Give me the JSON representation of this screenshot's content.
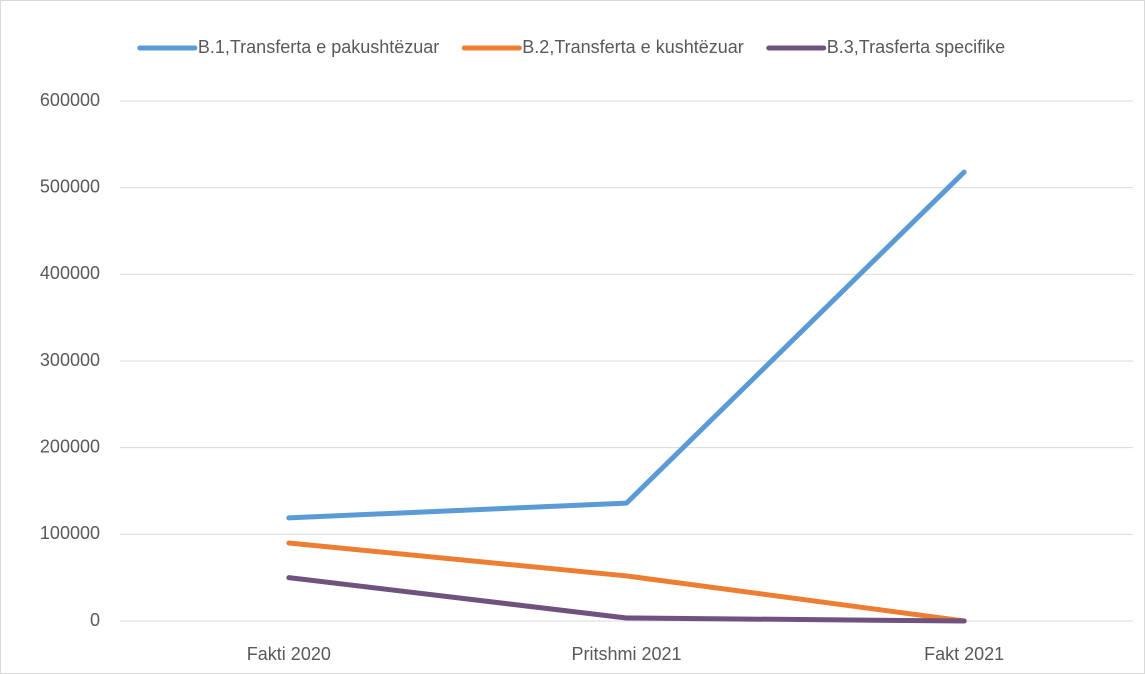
{
  "chart_data": {
    "type": "line",
    "categories": [
      "Fakti 2020",
      "Pritshmi 2021",
      "Fakt 2021"
    ],
    "series": [
      {
        "name": "B.1,Transferta e pakushtëzuar",
        "color": "#5b9bd5",
        "values": [
          119000,
          136000,
          518000
        ]
      },
      {
        "name": "B.2,Transferta e kushtëzuar",
        "color": "#ed7d31",
        "values": [
          90000,
          52000,
          0
        ]
      },
      {
        "name": "B.3,Trasferta specifike",
        "color": "#70527f",
        "values": [
          50000,
          3500,
          0
        ]
      }
    ],
    "ylim": [
      0,
      600000
    ],
    "yticks": [
      0,
      100000,
      200000,
      300000,
      400000,
      500000,
      600000
    ],
    "grid": true,
    "legend": "top"
  }
}
